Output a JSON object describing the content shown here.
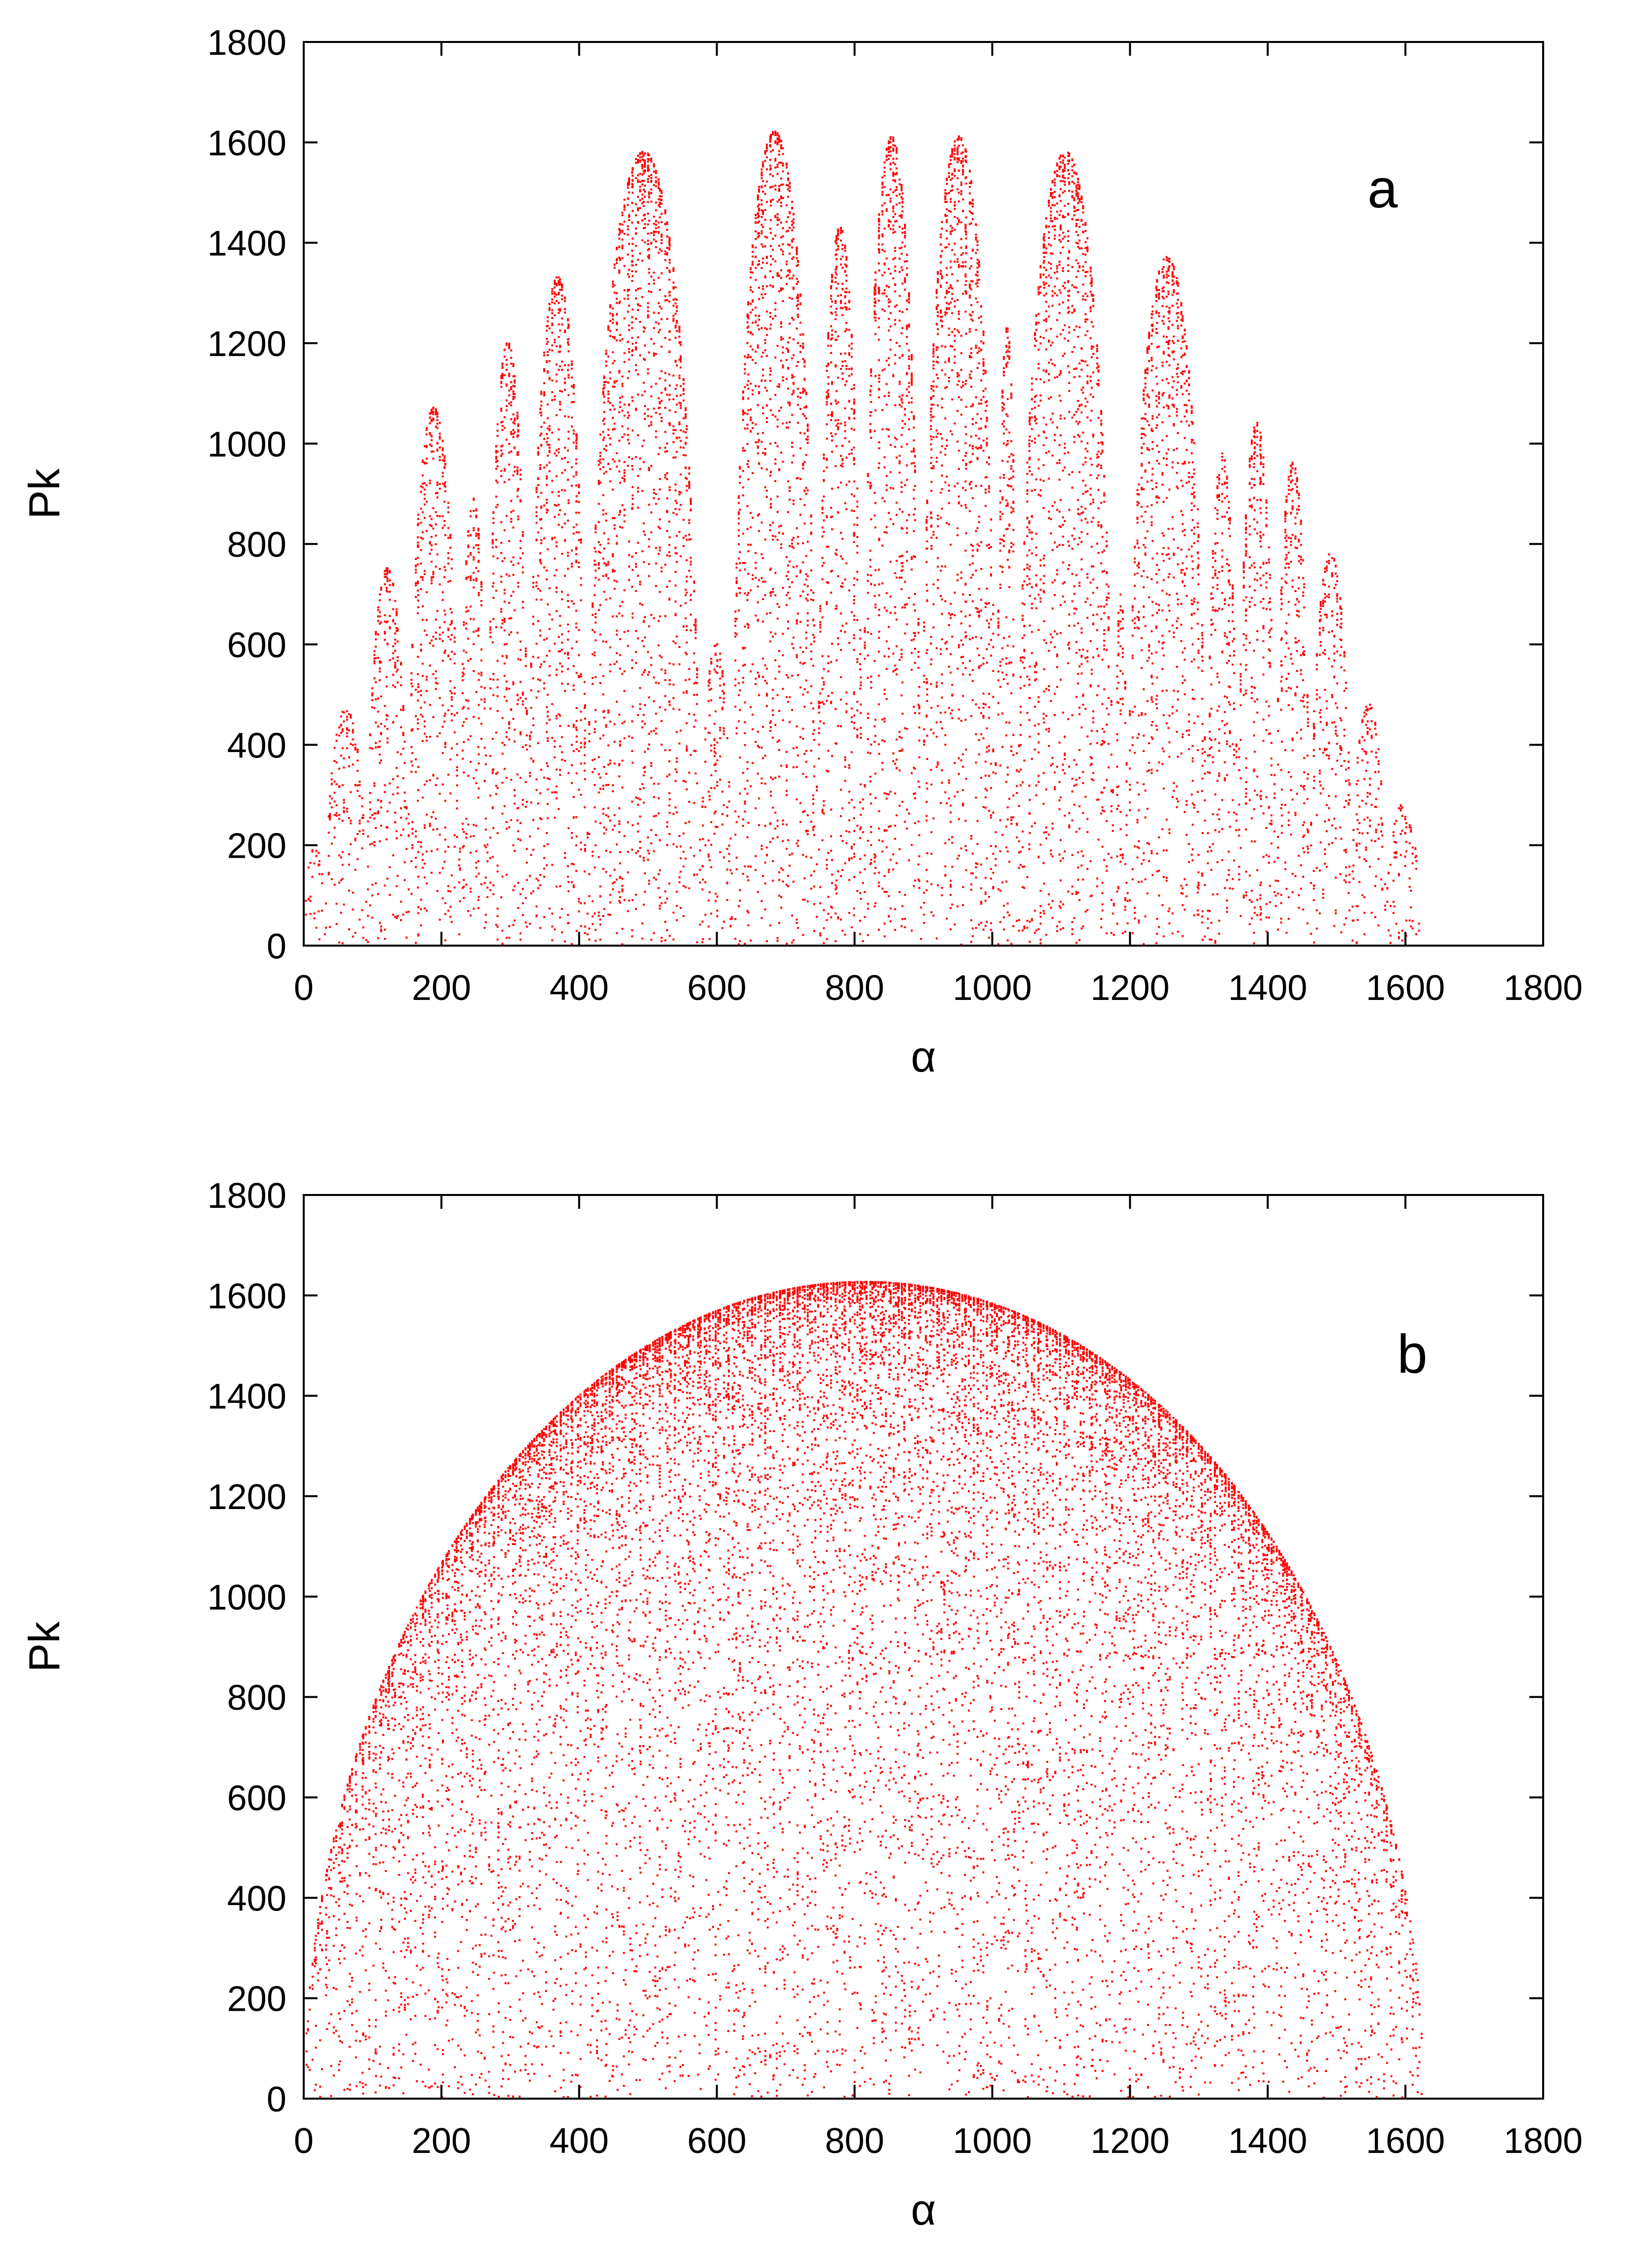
{
  "chart_data": [
    {
      "type": "scatter",
      "panel_label": "a",
      "xlabel": "α",
      "ylabel": "Pk",
      "xlim": [
        0,
        1800
      ],
      "ylim": [
        0,
        1800
      ],
      "x_ticks": [
        0,
        200,
        400,
        600,
        800,
        1000,
        1200,
        1400,
        1600,
        1800
      ],
      "y_ticks": [
        0,
        200,
        400,
        600,
        800,
        1000,
        1200,
        1400,
        1600,
        1800
      ],
      "grid": false,
      "legend": "none",
      "point_color": "#ff0000",
      "series": [
        {
          "description_values": "lobes (alpha_start, alpha_end, peak Pk)",
          "lobes": [
            [
              0,
              30,
              200
            ],
            [
              30,
              90,
              470
            ],
            [
              90,
              150,
              750
            ],
            [
              150,
              225,
              1070
            ],
            [
              225,
              265,
              890
            ],
            [
              265,
              325,
              1200
            ],
            [
              325,
              410,
              1330
            ],
            [
              410,
              575,
              1580
            ],
            [
              575,
              620,
              600
            ],
            [
              620,
              745,
              1620
            ],
            [
              745,
              810,
              1430
            ],
            [
              810,
              895,
              1610
            ],
            [
              895,
              1005,
              1610
            ],
            [
              1005,
              1035,
              1230
            ],
            [
              1035,
              1175,
              1580
            ],
            [
              1175,
              1195,
              700
            ],
            [
              1195,
              1310,
              1370
            ],
            [
              1310,
              1355,
              980
            ],
            [
              1355,
              1410,
              1040
            ],
            [
              1410,
              1460,
              960
            ],
            [
              1460,
              1520,
              780
            ],
            [
              1520,
              1570,
              480
            ],
            [
              1570,
              1620,
              280
            ]
          ]
        }
      ]
    },
    {
      "type": "scatter",
      "panel_label": "b",
      "xlabel": "α",
      "ylabel": "Pk",
      "xlim": [
        0,
        1800
      ],
      "ylim": [
        0,
        1800
      ],
      "x_ticks": [
        0,
        200,
        400,
        600,
        800,
        1000,
        1200,
        1400,
        1600,
        1800
      ],
      "y_ticks": [
        0,
        200,
        400,
        600,
        800,
        1000,
        1200,
        1400,
        1600,
        1800
      ],
      "grid": false,
      "legend": "none",
      "point_color": "#ff0000",
      "series": [
        {
          "envelope": {
            "alpha_start": 0,
            "alpha_end": 1625,
            "peak_alpha": 840,
            "peak_Pk": 1625
          }
        }
      ]
    }
  ]
}
